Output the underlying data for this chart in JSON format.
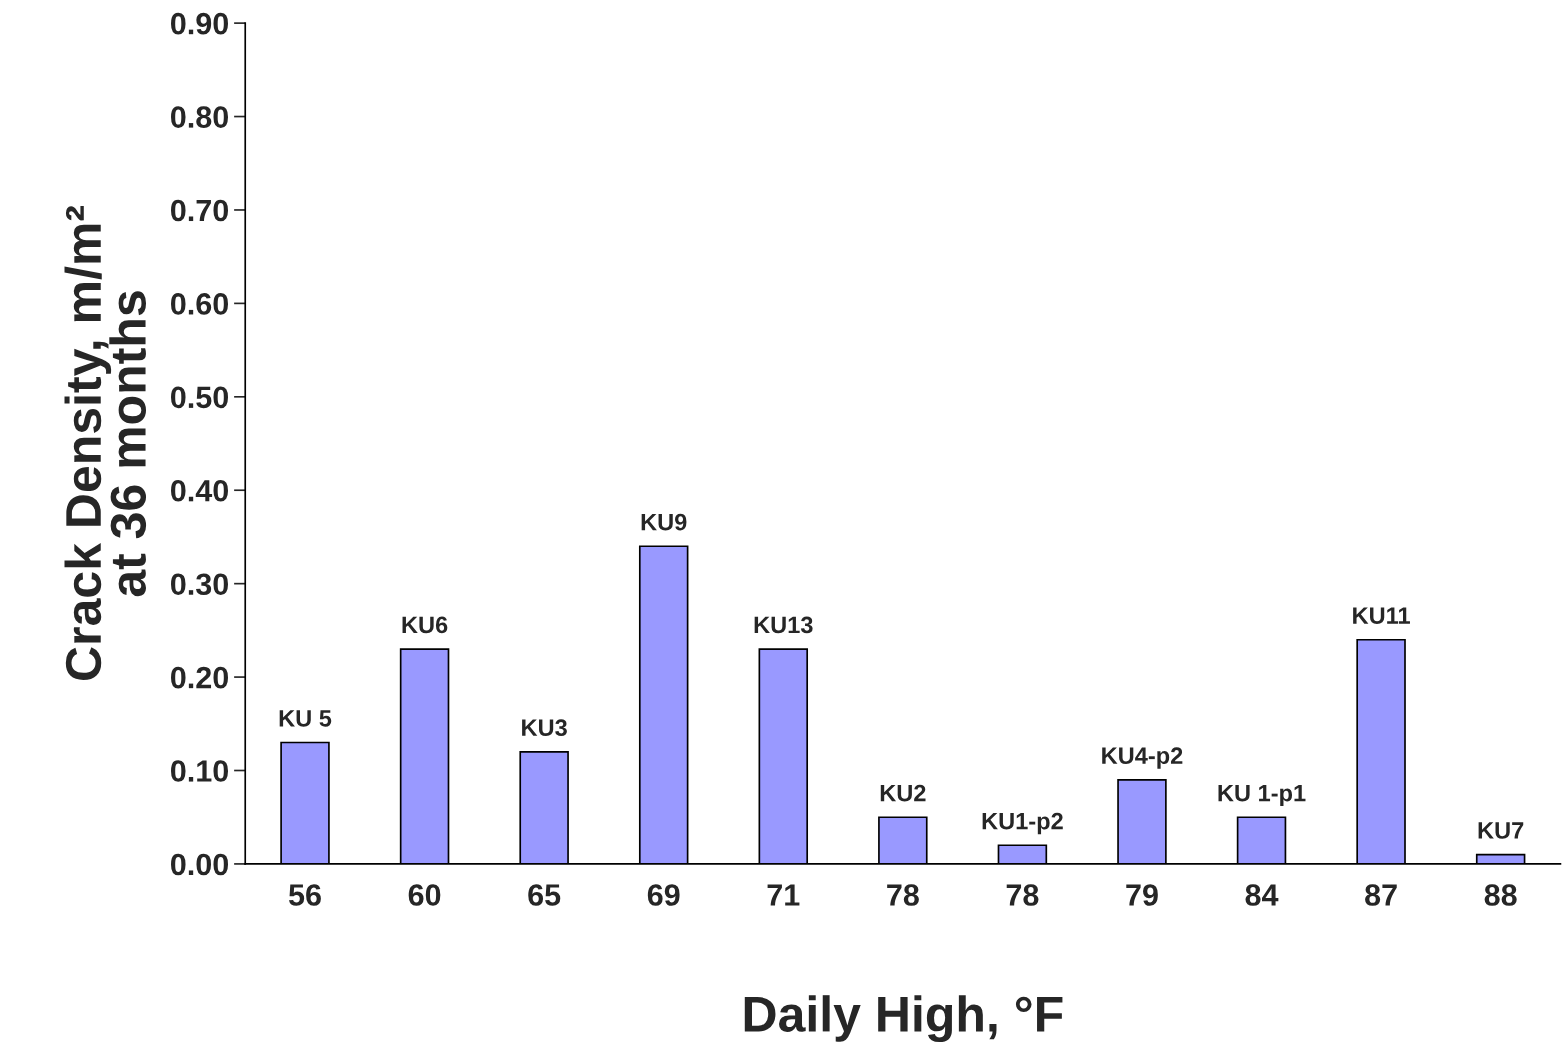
{
  "chart_data": {
    "type": "bar",
    "xlabel": "Daily High, °F",
    "ylabel": "Crack Density, m/m²\nat 36 months",
    "categories": [
      "56",
      "60",
      "65",
      "69",
      "71",
      "78",
      "78",
      "79",
      "84",
      "87",
      "88"
    ],
    "values": [
      0.13,
      0.23,
      0.12,
      0.34,
      0.23,
      0.05,
      0.02,
      0.09,
      0.05,
      0.24,
      0.01
    ],
    "color": "#9999ff",
    "ylim": [
      0,
      0.9
    ],
    "yticks": [
      {
        "value": 0,
        "label": "0.00"
      },
      {
        "value": 0.1,
        "label": "0.10"
      },
      {
        "value": 0.2,
        "label": "0.20"
      },
      {
        "value": 0.3,
        "label": "0.30"
      },
      {
        "value": 0.4,
        "label": "0.40"
      },
      {
        "value": 0.5,
        "label": "0.50"
      },
      {
        "value": 0.6,
        "label": "0.60"
      },
      {
        "value": 0.7,
        "label": "0.70"
      },
      {
        "value": 0.8,
        "label": "0.80"
      },
      {
        "value": 0.9,
        "label": "0.90"
      }
    ],
    "grid": false,
    "value_labels": [
      "KU 5",
      "KU6",
      "KU3",
      "KU9",
      "KU13",
      "KU2",
      "KU1-p2",
      "KU4-p2",
      "KU 1-p1",
      "KU11",
      "KU7"
    ]
  }
}
